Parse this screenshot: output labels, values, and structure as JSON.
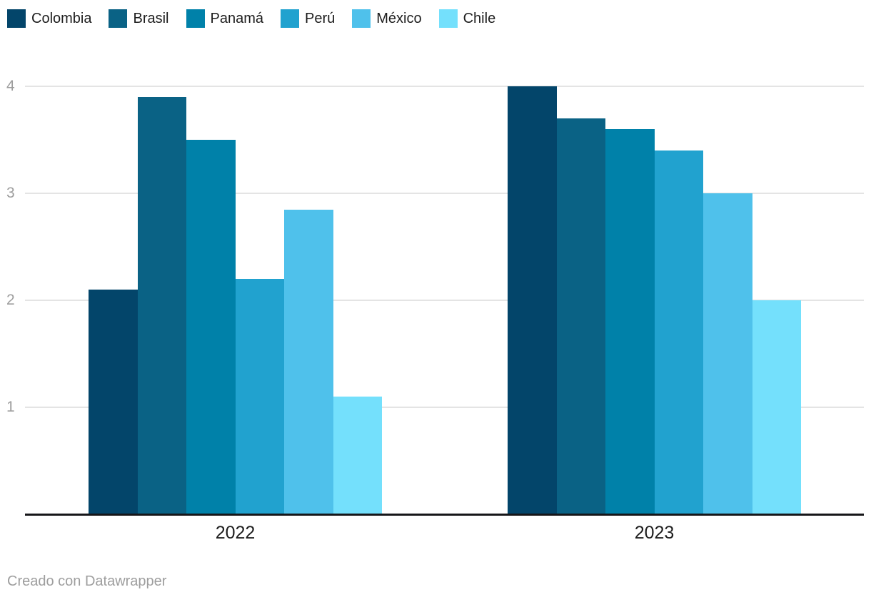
{
  "chart_data": {
    "type": "bar",
    "categories": [
      "2022",
      "2023"
    ],
    "series": [
      {
        "name": "Colombia",
        "color": "#03456a",
        "values": [
          2.1,
          4.0
        ]
      },
      {
        "name": "Brasil",
        "color": "#0a6285",
        "values": [
          3.9,
          3.7
        ]
      },
      {
        "name": "Panamá",
        "color": "#0081a9",
        "values": [
          3.5,
          3.6
        ]
      },
      {
        "name": "Perú",
        "color": "#21a2cf",
        "values": [
          2.2,
          3.4
        ]
      },
      {
        "name": "México",
        "color": "#4fc1eb",
        "values": [
          2.85,
          3.0
        ]
      },
      {
        "name": "Chile",
        "color": "#74e0fc",
        "values": [
          1.1,
          2.0
        ]
      }
    ],
    "yticks": [
      1,
      2,
      3,
      4
    ],
    "ylim": [
      0,
      4
    ],
    "grid": true,
    "legend_position": "top-left",
    "grid_color": "#e4e4e4",
    "axis_color": "#161619",
    "tick_label_color": "#9d9d9d",
    "text_color": "#1d1d1d"
  },
  "footer": {
    "attribution": "Creado con Datawrapper"
  }
}
